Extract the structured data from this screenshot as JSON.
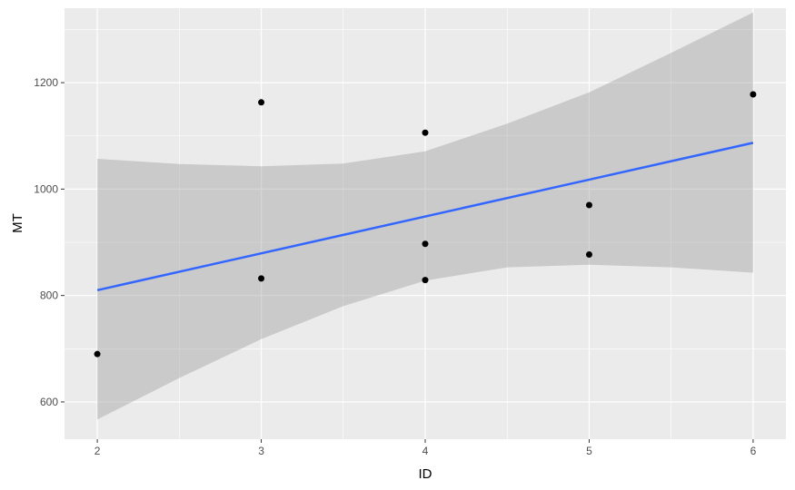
{
  "chart_data": {
    "type": "scatter",
    "xlabel": "ID",
    "ylabel": "MT",
    "xlim": [
      1.8,
      6.2
    ],
    "ylim": [
      530,
      1340
    ],
    "x_ticks": [
      2,
      3,
      4,
      5,
      6
    ],
    "x_tick_labels": [
      "2",
      "3",
      "4",
      "5",
      "6"
    ],
    "y_ticks": [
      600,
      800,
      1000,
      1200
    ],
    "y_tick_labels": [
      "600",
      "800",
      "1000",
      "1200"
    ],
    "grid": true,
    "legend": "none",
    "points": [
      {
        "x": 2,
        "y": 690
      },
      {
        "x": 3,
        "y": 1163
      },
      {
        "x": 3,
        "y": 832
      },
      {
        "x": 4,
        "y": 1106
      },
      {
        "x": 4,
        "y": 897
      },
      {
        "x": 4,
        "y": 829
      },
      {
        "x": 5,
        "y": 970
      },
      {
        "x": 5,
        "y": 877
      },
      {
        "x": 6,
        "y": 1178
      }
    ],
    "smooth": {
      "method": "linear",
      "line": [
        {
          "x": 2,
          "y": 810
        },
        {
          "x": 6,
          "y": 1087
        }
      ],
      "confidence_band": [
        {
          "x": 2.0,
          "lower": 567,
          "upper": 1057
        },
        {
          "x": 2.5,
          "lower": 645,
          "upper": 1047
        },
        {
          "x": 3.0,
          "lower": 718,
          "upper": 1043
        },
        {
          "x": 3.5,
          "lower": 780,
          "upper": 1048
        },
        {
          "x": 4.0,
          "lower": 828,
          "upper": 1071
        },
        {
          "x": 4.5,
          "lower": 853,
          "upper": 1123
        },
        {
          "x": 5.0,
          "lower": 858,
          "upper": 1182
        },
        {
          "x": 5.5,
          "lower": 853,
          "upper": 1256
        },
        {
          "x": 6.0,
          "lower": 843,
          "upper": 1332
        }
      ]
    },
    "colors": {
      "panel_background": "#ebebeb",
      "grid_major": "#ffffff",
      "points": "#000000",
      "smooth_line": "#3366ff",
      "confidence_band": "#999999"
    }
  }
}
